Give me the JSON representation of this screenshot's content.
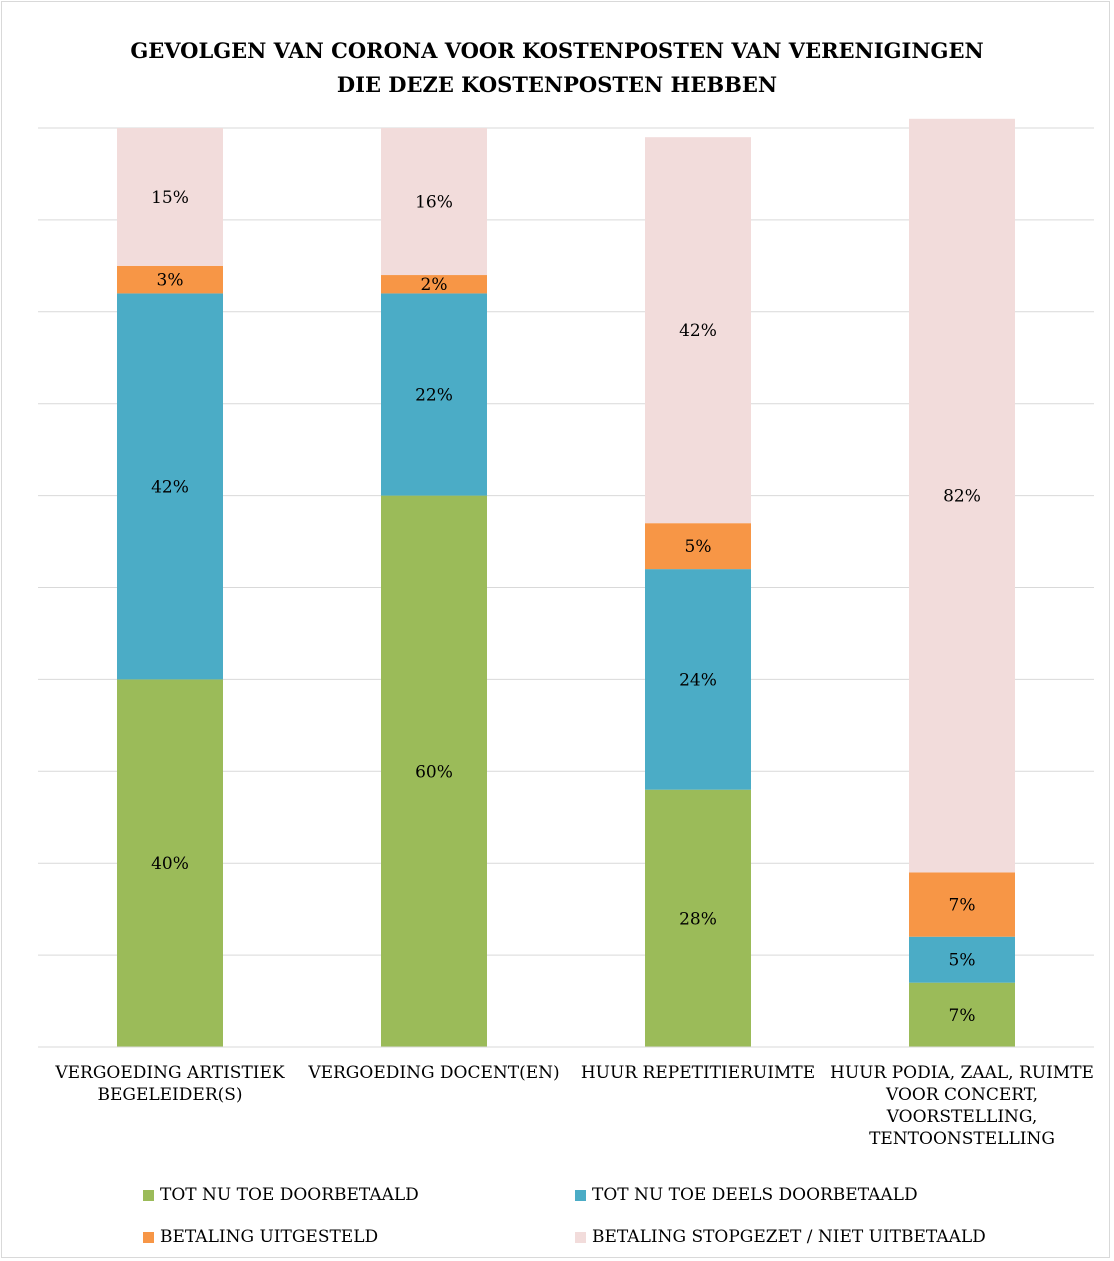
{
  "chart_data": {
    "type": "bar",
    "stacked": true,
    "title": "GEVOLGEN VAN CORONA VOOR KOSTENPOSTEN VAN VERENIGINGEN\nDIE DEZE KOSTENPOSTEN HEBBEN",
    "categories": [
      "VERGOEDING ARTISTIEK BEGELEIDER(S)",
      "VERGOEDING DOCENT(EN)",
      "HUUR REPETITIERUIMTE",
      "HUUR PODIA, ZAAL, RUIMTE VOOR CONCERT, VOORSTELLING, TENTOONSTELLING"
    ],
    "series": [
      {
        "name": "TOT NU TOE DOORBETAALD",
        "values": [
          40,
          60,
          28,
          7
        ],
        "labels": [
          "40%",
          "60%",
          "28%",
          "7%"
        ],
        "color": "#9bbb59"
      },
      {
        "name": "TOT NU TOE DEELS DOORBETAALD",
        "values": [
          42,
          22,
          24,
          5
        ],
        "labels": [
          "42%",
          "22%",
          "24%",
          "5%"
        ],
        "color": "#4bacc6"
      },
      {
        "name": "BETALING UITGESTELD",
        "values": [
          3,
          2,
          5,
          7
        ],
        "labels": [
          "3%",
          "2%",
          "5%",
          "7%"
        ],
        "color": "#f79646"
      },
      {
        "name": "BETALING STOPGEZET / NIET UITBETAALD",
        "values": [
          15,
          16,
          42,
          82
        ],
        "labels": [
          "15%",
          "16%",
          "42%",
          "82%"
        ],
        "color": "#f2dcdb"
      }
    ],
    "ylim": [
      0,
      100
    ],
    "grid": true,
    "legend_position": "bottom",
    "xlabel": "",
    "ylabel": ""
  }
}
